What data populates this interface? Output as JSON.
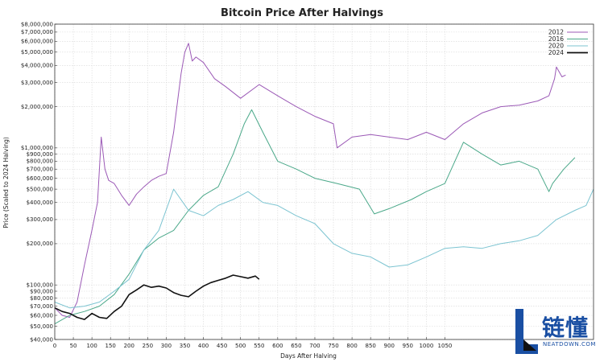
{
  "chart_data": {
    "type": "line",
    "title": "Bitcoin Price After Halvings",
    "xlabel": "Days After Halving",
    "ylabel": "Price (Scaled to 2024 Halving)",
    "scale_y": "log",
    "xlim": [
      0,
      1450
    ],
    "ylim": [
      40000,
      8000000
    ],
    "grid": true,
    "legend_position": "top-right",
    "x_ticks": [
      0,
      50,
      100,
      150,
      200,
      250,
      300,
      350,
      400,
      450,
      500,
      550,
      600,
      650,
      700,
      750,
      800,
      850,
      900,
      950,
      1000,
      1050
    ],
    "y_ticks": [
      {
        "value": 8000000,
        "label": "$8,000,000"
      },
      {
        "value": 7000000,
        "label": "$7,000,000"
      },
      {
        "value": 6000000,
        "label": "$6,000,000"
      },
      {
        "value": 5000000,
        "label": "$5,000,000"
      },
      {
        "value": 4000000,
        "label": "$4,000,000"
      },
      {
        "value": 3000000,
        "label": "$3,000,000"
      },
      {
        "value": 2000000,
        "label": "$2,000,000"
      },
      {
        "value": 1000000,
        "label": "$1,000,000"
      },
      {
        "value": 900000,
        "label": "$900,000"
      },
      {
        "value": 800000,
        "label": "$800,000"
      },
      {
        "value": 700000,
        "label": "$700,000"
      },
      {
        "value": 600000,
        "label": "$600,000"
      },
      {
        "value": 500000,
        "label": "$500,000"
      },
      {
        "value": 400000,
        "label": "$400,000"
      },
      {
        "value": 300000,
        "label": "$300,000"
      },
      {
        "value": 200000,
        "label": "$200,000"
      },
      {
        "value": 100000,
        "label": "$100,000"
      },
      {
        "value": 90000,
        "label": "$90,000"
      },
      {
        "value": 80000,
        "label": "$80,000"
      },
      {
        "value": 70000,
        "label": "$70,000"
      },
      {
        "value": 60000,
        "label": "$60,000"
      },
      {
        "value": 50000,
        "label": "$50,000"
      },
      {
        "value": 40000,
        "label": "$40,000"
      }
    ],
    "series": [
      {
        "name": "2012",
        "color": "#9b59b6",
        "x": [
          0,
          20,
          40,
          60,
          80,
          100,
          115,
          125,
          135,
          145,
          160,
          180,
          200,
          220,
          240,
          260,
          280,
          300,
          320,
          340,
          350,
          360,
          370,
          380,
          400,
          430,
          460,
          500,
          550,
          600,
          650,
          700,
          750,
          760,
          800,
          850,
          900,
          950,
          1000,
          1050,
          1100,
          1150,
          1200,
          1250,
          1300,
          1330,
          1345,
          1350,
          1365,
          1375
        ],
        "y": [
          68000,
          60000,
          58000,
          75000,
          140000,
          250000,
          400000,
          1200000,
          700000,
          580000,
          550000,
          450000,
          380000,
          460000,
          520000,
          580000,
          620000,
          650000,
          1300000,
          3500000,
          5000000,
          5800000,
          4300000,
          4600000,
          4200000,
          3200000,
          2800000,
          2300000,
          2900000,
          2400000,
          2000000,
          1700000,
          1500000,
          1000000,
          1200000,
          1250000,
          1200000,
          1150000,
          1300000,
          1150000,
          1500000,
          1800000,
          2000000,
          2050000,
          2200000,
          2400000,
          3200000,
          3900000,
          3300000,
          3400000
        ]
      },
      {
        "name": "2016",
        "color": "#4aa889",
        "x": [
          0,
          40,
          80,
          120,
          160,
          200,
          240,
          280,
          320,
          360,
          400,
          440,
          480,
          510,
          530,
          560,
          600,
          650,
          700,
          760,
          820,
          860,
          900,
          960,
          1000,
          1050,
          1100,
          1150,
          1200,
          1250,
          1300,
          1330,
          1340,
          1370,
          1400
        ],
        "y": [
          52000,
          60000,
          64000,
          70000,
          85000,
          120000,
          180000,
          220000,
          250000,
          350000,
          450000,
          520000,
          900000,
          1500000,
          1900000,
          1300000,
          800000,
          700000,
          600000,
          550000,
          500000,
          330000,
          360000,
          420000,
          480000,
          550000,
          1100000,
          900000,
          750000,
          800000,
          700000,
          480000,
          550000,
          700000,
          850000
        ]
      },
      {
        "name": "2020",
        "color": "#7cc4d1",
        "x": [
          0,
          40,
          80,
          120,
          160,
          200,
          240,
          280,
          320,
          360,
          400,
          440,
          480,
          520,
          560,
          600,
          650,
          700,
          750,
          800,
          850,
          900,
          950,
          1000,
          1050,
          1100,
          1150,
          1200,
          1250,
          1300,
          1350,
          1400,
          1430,
          1450
        ],
        "y": [
          75000,
          68000,
          70000,
          75000,
          90000,
          110000,
          180000,
          250000,
          500000,
          350000,
          320000,
          380000,
          420000,
          480000,
          400000,
          380000,
          320000,
          280000,
          200000,
          170000,
          160000,
          135000,
          140000,
          160000,
          185000,
          190000,
          185000,
          200000,
          210000,
          230000,
          300000,
          350000,
          380000,
          500000
        ]
      },
      {
        "name": "2024",
        "color": "#111111",
        "x": [
          0,
          20,
          40,
          60,
          80,
          100,
          120,
          140,
          160,
          180,
          200,
          220,
          240,
          260,
          280,
          300,
          320,
          340,
          360,
          380,
          400,
          420,
          440,
          460,
          480,
          500,
          520,
          540,
          550
        ],
        "y": [
          68000,
          64000,
          62000,
          58000,
          56000,
          62000,
          58000,
          57000,
          64000,
          70000,
          85000,
          92000,
          100000,
          96000,
          98000,
          95000,
          88000,
          84000,
          82000,
          90000,
          98000,
          104000,
          108000,
          112000,
          118000,
          115000,
          112000,
          116000,
          110000
        ]
      }
    ]
  },
  "watermark": {
    "text_zh": "链懂",
    "text_en": "NEATDOWN.COM"
  }
}
